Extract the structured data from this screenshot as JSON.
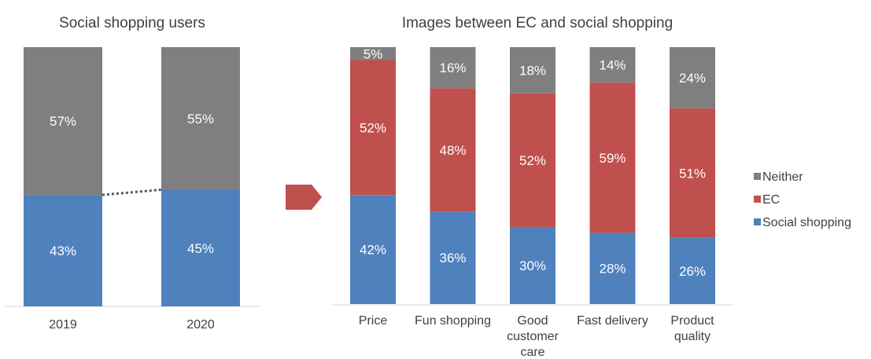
{
  "colors": {
    "neither": "#7f7f7f",
    "ec": "#c0504d",
    "social": "#4f81bd",
    "arrow": "#c0504d",
    "connector": "#595959"
  },
  "chart_data": [
    {
      "type": "bar",
      "stacked": true,
      "percent_stacked": true,
      "title": "Social shopping users",
      "categories": [
        "2019",
        "2020"
      ],
      "series": [
        {
          "name": "Social shopping",
          "values": [
            43,
            45
          ],
          "labels": [
            "43%",
            "45%"
          ]
        },
        {
          "name": "Neither",
          "values": [
            57,
            55
          ],
          "labels": [
            "57%",
            "55%"
          ]
        }
      ],
      "ylim": [
        0,
        100
      ],
      "grid": false,
      "legend": "none",
      "connector_between_bars": "dotted"
    },
    {
      "type": "bar",
      "stacked": true,
      "percent_stacked": true,
      "title": "Images between EC and social shopping",
      "categories": [
        [
          "Price"
        ],
        [
          "Fun shopping"
        ],
        [
          "Good",
          "customer",
          "care"
        ],
        [
          "Fast delivery"
        ],
        [
          "Product",
          "quality"
        ]
      ],
      "series": [
        {
          "name": "Social shopping",
          "values": [
            42,
            36,
            30,
            28,
            26
          ],
          "labels": [
            "42%",
            "36%",
            "30%",
            "28%",
            "26%"
          ]
        },
        {
          "name": "EC",
          "values": [
            52,
            48,
            52,
            59,
            51
          ],
          "labels": [
            "52%",
            "48%",
            "52%",
            "59%",
            "51%"
          ]
        },
        {
          "name": "Neither",
          "values": [
            5,
            16,
            18,
            14,
            24
          ],
          "labels": [
            "5%",
            "16%",
            "18%",
            "14%",
            "24%"
          ]
        }
      ],
      "ylim": [
        0,
        100
      ],
      "grid": false,
      "legend": "right",
      "legend_order": [
        "Neither",
        "EC",
        "Social shopping"
      ]
    }
  ]
}
